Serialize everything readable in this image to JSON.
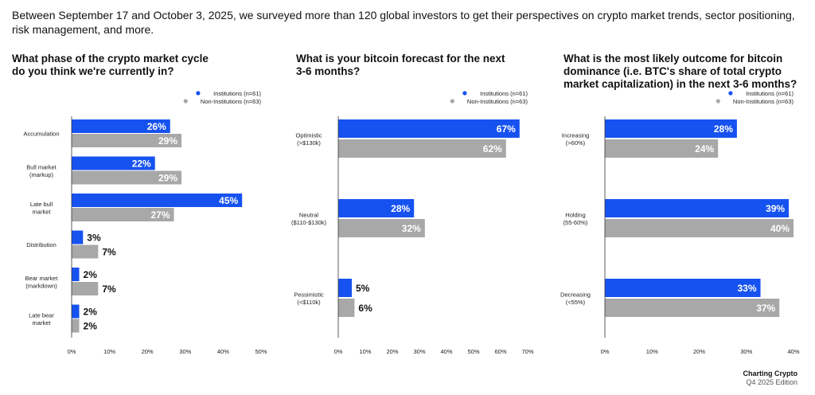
{
  "intro": "Between September 17 and October 3, 2025, we surveyed more than 120 global investors to get their perspectives on crypto market trends, sector positioning, risk management, and more.",
  "colors": {
    "institutions": "#1652f0",
    "non_institutions": "#a8a8a8"
  },
  "footer": {
    "source": "Charting Crypto",
    "edition": "Q4 2025 Edition"
  },
  "chart_data": [
    {
      "type": "bar",
      "orientation": "horizontal",
      "title": "What phase of the crypto market cycle do you think we're currently in?",
      "title_lines": [
        "What phase of the crypto market cycle",
        "do you think we're currently in?"
      ],
      "categories": [
        "Accumulation",
        "Bull market (markup)",
        "Late bull market",
        "Distribution",
        "Bear market (markdown)",
        "Late bear market"
      ],
      "category_lines": [
        [
          "Accumulation"
        ],
        [
          "Bull market",
          "(markup)"
        ],
        [
          "Late bull",
          "market"
        ],
        [
          "Distribution"
        ],
        [
          "Bear market",
          "(markdown)"
        ],
        [
          "Late bear",
          "market"
        ]
      ],
      "series": [
        {
          "name": "Institutions (n=61)",
          "values": [
            26,
            22,
            45,
            3,
            2,
            2
          ],
          "labels": [
            "26%",
            "22%",
            "45%",
            "3%",
            "2%",
            "2%"
          ]
        },
        {
          "name": "Non-Institutions (n=63)",
          "values": [
            29,
            29,
            27,
            7,
            7,
            2
          ],
          "labels": [
            "29%",
            "29%",
            "27%",
            "7%",
            "7%",
            "2%"
          ]
        }
      ],
      "xlim": [
        0,
        50
      ],
      "ticks": [
        "0%",
        "10%",
        "20%",
        "30%",
        "40%",
        "50%"
      ],
      "legend": "top-right",
      "grid": false
    },
    {
      "type": "bar",
      "orientation": "horizontal",
      "title": "What is your bitcoin forecast for the next 3-6 months?",
      "title_lines": [
        "What is your bitcoin forecast for the next",
        "3-6 months?"
      ],
      "categories": [
        "Optimistic (>$130k)",
        "Neutral ($110-$130k)",
        "Pessimistic (<$110k)"
      ],
      "category_lines": [
        [
          "Optimistic",
          "(>$130k)"
        ],
        [
          "Neutral",
          "($110-$130k)"
        ],
        [
          "Pessimistic",
          "(<$110k)"
        ]
      ],
      "series": [
        {
          "name": "Institutions (n=61)",
          "values": [
            67,
            28,
            5
          ],
          "labels": [
            "67%",
            "28%",
            "5%"
          ]
        },
        {
          "name": "Non-Institutions (n=63)",
          "values": [
            62,
            32,
            6
          ],
          "labels": [
            "62%",
            "32%",
            "6%"
          ]
        }
      ],
      "xlim": [
        0,
        70
      ],
      "ticks": [
        "0%",
        "10%",
        "20%",
        "30%",
        "40%",
        "50%",
        "60%",
        "70%"
      ],
      "legend": "top-right",
      "grid": false
    },
    {
      "type": "bar",
      "orientation": "horizontal",
      "title": "What is the most likely outcome for bitcoin dominance (i.e. BTC's share of total crypto market capitalization) in the next 3-6 months?",
      "title_lines": [
        "What is the most likely outcome for bitcoin",
        "dominance (i.e. BTC's share of total crypto",
        "market capitalization) in the next 3-6 months?"
      ],
      "categories": [
        "Increasing (>60%)",
        "Holding (55-60%)",
        "Decreasing (<55%)"
      ],
      "category_lines": [
        [
          "Increasing",
          "(>60%)"
        ],
        [
          "Holding",
          "(55-60%)"
        ],
        [
          "Decreasing",
          "(<55%)"
        ]
      ],
      "series": [
        {
          "name": "Institutions (n=61)",
          "values": [
            28,
            39,
            33
          ],
          "labels": [
            "28%",
            "39%",
            "33%"
          ]
        },
        {
          "name": "Non-Institutions (n=63)",
          "values": [
            24,
            40,
            37
          ],
          "labels": [
            "24%",
            "40%",
            "37%"
          ]
        }
      ],
      "xlim": [
        0,
        40
      ],
      "ticks": [
        "0%",
        "10%",
        "20%",
        "30%",
        "40%"
      ],
      "legend": "top-right",
      "grid": false
    }
  ]
}
